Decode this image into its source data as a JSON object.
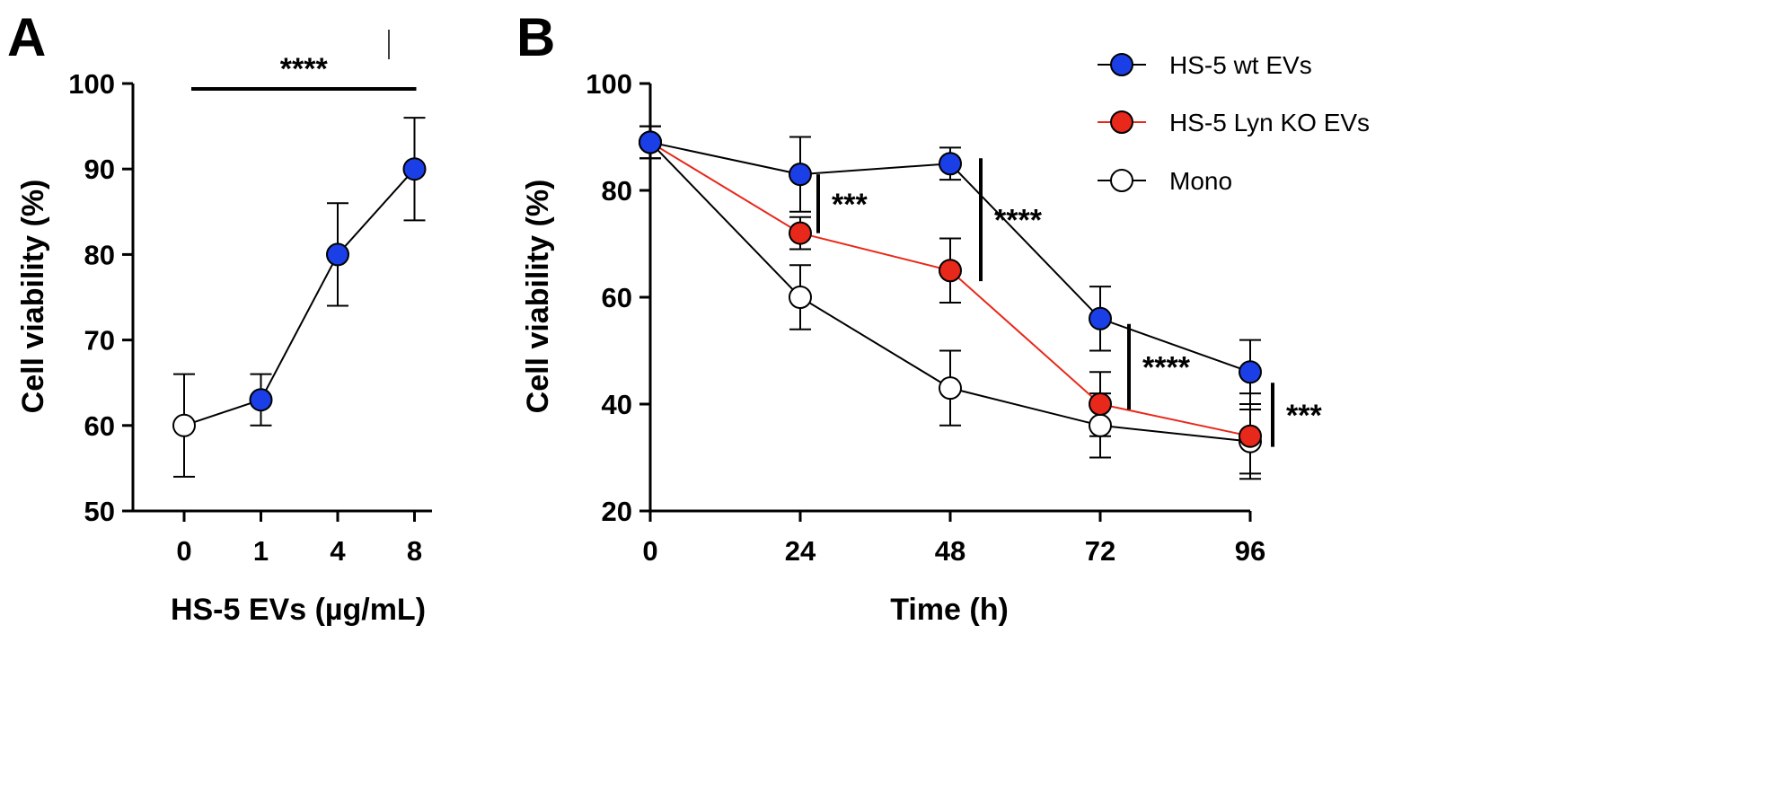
{
  "chart_data": [
    {
      "panel": "A",
      "type": "line",
      "xlabel": "HS-5 EVs (µg/mL)",
      "ylabel": "Cell viability (%)",
      "ylim": [
        50,
        100
      ],
      "yticks": [
        "50",
        "60",
        "70",
        "80",
        "90",
        "100"
      ],
      "categories": [
        "0",
        "1",
        "4",
        "8"
      ],
      "series": [
        {
          "name": "HS-5 EVs",
          "values": [
            60,
            63,
            80,
            90
          ],
          "errors": [
            6,
            3,
            6,
            6
          ],
          "point_fills": [
            "#ffffff",
            "#1a3fe6",
            "#1a3fe6",
            "#1a3fe6"
          ],
          "line_color": "#000000"
        }
      ],
      "annotations": [
        {
          "text": "****",
          "from": "0",
          "to": "8",
          "type": "bracket"
        }
      ]
    },
    {
      "panel": "B",
      "type": "line",
      "xlabel": "Time (h)",
      "ylabel": "Cell viability (%)",
      "ylim": [
        20,
        100
      ],
      "yticks": [
        "20",
        "40",
        "60",
        "80",
        "100"
      ],
      "x": [
        0,
        24,
        48,
        72,
        96
      ],
      "xticks": [
        "0",
        "24",
        "48",
        "72",
        "96"
      ],
      "legend_position": "top-right",
      "series": [
        {
          "name": "HS-5 wt EVs",
          "values": [
            89,
            83,
            85,
            56,
            46
          ],
          "errors": [
            3,
            7,
            3,
            6,
            6
          ],
          "fill": "#1a3fe6",
          "line_color": "#000000"
        },
        {
          "name": "HS-5 Lyn KO EVs",
          "values": [
            89,
            72,
            65,
            40,
            34
          ],
          "errors": [
            3,
            3,
            6,
            6,
            8
          ],
          "fill": "#e8281a",
          "line_color": "#e8281a"
        },
        {
          "name": "Mono",
          "values": [
            89,
            60,
            43,
            36,
            33
          ],
          "errors": [
            3,
            6,
            7,
            6,
            6
          ],
          "fill": "#ffffff",
          "line_color": "#000000"
        }
      ],
      "annotations": [
        {
          "text": "***",
          "x": 24
        },
        {
          "text": "****",
          "x": 48
        },
        {
          "text": "****",
          "x": 72
        },
        {
          "text": "***",
          "x": 96
        }
      ]
    }
  ]
}
